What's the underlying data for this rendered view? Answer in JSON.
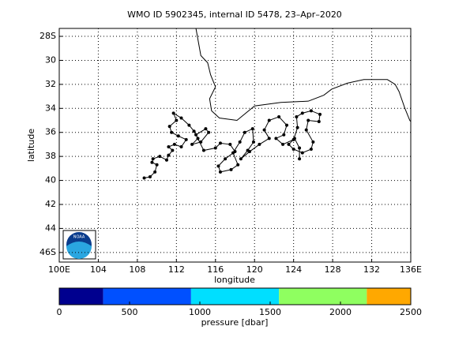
{
  "chart_data": {
    "type": "map",
    "title": "WMO ID 5902345, internal ID 5478, 23–Apr–2020",
    "x_label": "longitude",
    "y_label": "latitude",
    "xlim": [
      100,
      136
    ],
    "ylim": [
      -27.34,
      -46.8
    ],
    "xticks": [
      {
        "value": 100,
        "label": "100E"
      },
      104,
      108,
      112,
      116,
      120,
      124,
      128,
      132,
      {
        "value": 136,
        "label": "136E"
      }
    ],
    "yticks": [
      {
        "value": -28,
        "label": "28S"
      },
      {
        "value": -30,
        "label": "30"
      },
      {
        "value": -32,
        "label": "32"
      },
      {
        "value": -34,
        "label": "34"
      },
      {
        "value": -36,
        "label": "36"
      },
      {
        "value": -38,
        "label": "38"
      },
      {
        "value": -40,
        "label": "40"
      },
      {
        "value": -42,
        "label": "42"
      },
      {
        "value": -44,
        "label": "44"
      },
      {
        "value": -46,
        "label": "46S"
      }
    ],
    "grid": true,
    "logo_text": "NOAA",
    "coastline": {
      "x": [
        114.0,
        114.5,
        115.2,
        115.5,
        116.0,
        115.4,
        115.6,
        116.4,
        118.2,
        120.0,
        122.7,
        125.5,
        127.1,
        127.9,
        129.5,
        131.2,
        133.6,
        134.4,
        134.8,
        135.4,
        135.9,
        136.0
      ],
      "y": [
        -27.34,
        -29.6,
        -30.2,
        -31.2,
        -32.2,
        -33.2,
        -34.2,
        -34.8,
        -35.0,
        -33.8,
        -33.5,
        -33.4,
        -32.9,
        -32.4,
        -31.9,
        -31.6,
        -31.6,
        -32.0,
        -32.6,
        -34.0,
        -35.0,
        -35.1
      ]
    },
    "series": [
      {
        "name": "track",
        "color": "#000000",
        "x": [
          108.7,
          109.3,
          109.8,
          110.0,
          109.5,
          109.6,
          110.3,
          111.0,
          111.2,
          111.6,
          111.2,
          111.8,
          112.5,
          113.0,
          112.2,
          111.5,
          111.3,
          112.0,
          111.7,
          112.5,
          113.3,
          113.8,
          114.2,
          113.6,
          114.5,
          115.3,
          115.0,
          114.0,
          114.8,
          116.0,
          116.5,
          117.5,
          118.0,
          117.0,
          116.3,
          116.5,
          117.6,
          118.3,
          117.8,
          118.5,
          119.0,
          119.8,
          119.9,
          119.3,
          118.6,
          119.5,
          120.5,
          121.5,
          121.0,
          121.5,
          122.5,
          123.3,
          123.0,
          122.2,
          122.9,
          124.0,
          124.4,
          124.3,
          124.9,
          125.8,
          126.7,
          126.6,
          125.5,
          125.3,
          126.0,
          125.8,
          124.9,
          124.0,
          123.5,
          124.1,
          124.6,
          124.6
        ],
        "y": [
          -39.8,
          -39.7,
          -39.3,
          -38.7,
          -38.5,
          -38.2,
          -38.0,
          -38.3,
          -37.9,
          -37.5,
          -37.2,
          -37.0,
          -37.2,
          -36.6,
          -36.3,
          -36.0,
          -35.5,
          -35.0,
          -34.4,
          -34.8,
          -35.4,
          -35.9,
          -36.5,
          -37.0,
          -36.8,
          -36.0,
          -35.7,
          -36.2,
          -37.5,
          -37.3,
          -36.9,
          -37.0,
          -37.6,
          -38.2,
          -38.8,
          -39.3,
          -39.1,
          -38.7,
          -37.7,
          -36.8,
          -36.0,
          -35.7,
          -36.8,
          -37.5,
          -38.2,
          -37.6,
          -37.0,
          -36.5,
          -35.8,
          -35.0,
          -34.7,
          -35.4,
          -36.2,
          -36.5,
          -37.0,
          -36.6,
          -35.6,
          -34.7,
          -34.4,
          -34.2,
          -34.5,
          -35.1,
          -35.0,
          -35.8,
          -36.8,
          -37.4,
          -37.7,
          -37.4,
          -37.0,
          -36.5,
          -37.3,
          -38.2
        ]
      }
    ],
    "colorbar": {
      "label": "pressure [dbar]",
      "lim": [
        0,
        2500
      ],
      "ticks": [
        0,
        500,
        1000,
        1500,
        2000,
        2500
      ],
      "segments": [
        {
          "from": 0,
          "to": 312.5,
          "color": "#00008f"
        },
        {
          "from": 312.5,
          "to": 937.5,
          "color": "#0050ff"
        },
        {
          "from": 937.5,
          "to": 1562.5,
          "color": "#00dfff"
        },
        {
          "from": 1562.5,
          "to": 2187.5,
          "color": "#8fff60"
        },
        {
          "from": 2187.5,
          "to": 2500,
          "color": "#ffa800"
        }
      ]
    }
  }
}
